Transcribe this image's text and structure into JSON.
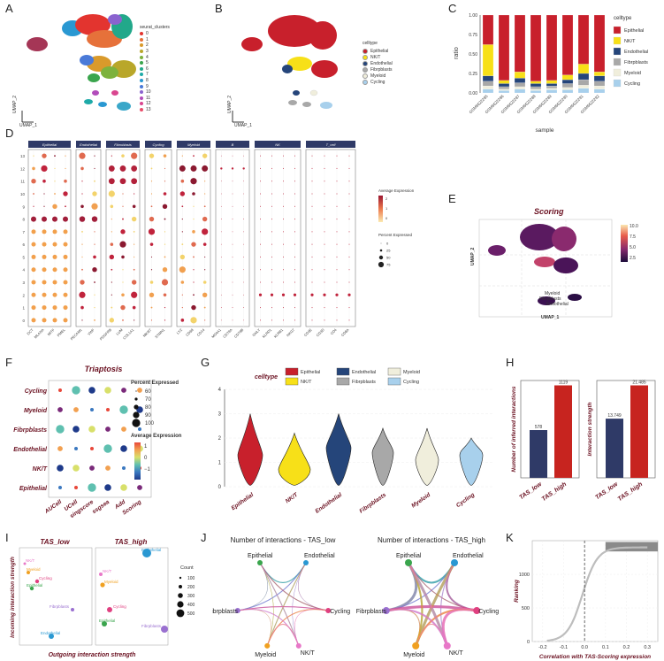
{
  "panels": [
    "A",
    "B",
    "C",
    "D",
    "E",
    "F",
    "G",
    "H",
    "I",
    "J",
    "K"
  ],
  "colors": {
    "epithelial": "#c8202c",
    "nkt": "#f7e018",
    "endothelial": "#25457a",
    "fibroblasts": "#a8a8a8",
    "myeloid": "#f0eedc",
    "cycling": "#a8d0ec",
    "dark_red": "#6a1020",
    "navy": "#2f3a67",
    "red_bar": "#c7241f"
  },
  "A": {
    "legend_title": "seurat_clusters",
    "clusters": [
      {
        "label": "0",
        "color": "#e3342f"
      },
      {
        "label": "1",
        "color": "#e6713a"
      },
      {
        "label": "2",
        "color": "#d99a2b"
      },
      {
        "label": "3",
        "color": "#b9a72a"
      },
      {
        "label": "4",
        "color": "#7db23d"
      },
      {
        "label": "5",
        "color": "#3aa54d"
      },
      {
        "label": "6",
        "color": "#22a88a"
      },
      {
        "label": "7",
        "color": "#1eaaa8"
      },
      {
        "label": "8",
        "color": "#2a98d2"
      },
      {
        "label": "9",
        "color": "#4a7ad8"
      },
      {
        "label": "10",
        "color": "#8a63cf"
      },
      {
        "label": "11",
        "color": "#b24dbb"
      },
      {
        "label": "12",
        "color": "#d9468f"
      },
      {
        "label": "13",
        "color": "#e84d6a"
      }
    ],
    "xlabel": "UMAP_1",
    "ylabel": "UMAP_2"
  },
  "B": {
    "legend_title": "celltype",
    "items": [
      "Epithelial",
      "NK/T",
      "Endothelial",
      "Fibrpblasts",
      "Myeloid",
      "Cycling"
    ],
    "xlabel": "UMAP_1",
    "ylabel": "UMAP_2"
  },
  "C": {
    "legend_title": "celltype",
    "legend": [
      "Epithelial",
      "NK/T",
      "Endothelial",
      "Fibrpblasts",
      "Myeloid",
      "Cycling"
    ],
    "ylabel": "ratio",
    "xlabel": "sample",
    "yticks": [
      "0.00",
      "0.25",
      "0.50",
      "0.75",
      "1.00"
    ],
    "samples": [
      "GSM6622285",
      "GSM6622286",
      "GSM6622287",
      "GSM6622288",
      "GSM6622289",
      "GSM6622290",
      "GSM6622291",
      "GSM6622292"
    ],
    "chart_data": {
      "type": "bar",
      "categories": [
        "GSM6622285",
        "GSM6622286",
        "GSM6622287",
        "GSM6622288",
        "GSM6622289",
        "GSM6622290",
        "GSM6622291",
        "GSM6622292"
      ],
      "series": [
        {
          "name": "Cycling",
          "values": [
            0.05,
            0.03,
            0.05,
            0.03,
            0.04,
            0.04,
            0.06,
            0.05
          ]
        },
        {
          "name": "Myeloid",
          "values": [
            0.04,
            0.02,
            0.03,
            0.02,
            0.02,
            0.03,
            0.04,
            0.04
          ]
        },
        {
          "name": "Fibrpblasts",
          "values": [
            0.06,
            0.03,
            0.05,
            0.03,
            0.03,
            0.05,
            0.07,
            0.06
          ]
        },
        {
          "name": "Endothelial",
          "values": [
            0.07,
            0.04,
            0.06,
            0.04,
            0.03,
            0.05,
            0.08,
            0.07
          ]
        },
        {
          "name": "NK/T",
          "values": [
            0.4,
            0.04,
            0.08,
            0.03,
            0.04,
            0.06,
            0.12,
            0.05
          ]
        },
        {
          "name": "Epithelial",
          "values": [
            0.38,
            0.84,
            0.73,
            0.85,
            0.84,
            0.77,
            0.63,
            0.73
          ]
        }
      ],
      "ylim": [
        0,
        1
      ]
    }
  },
  "D": {
    "groups": [
      "Epithelial",
      "Endothelial",
      "Fibroblasts",
      "Cycling",
      "Myeloid",
      "B",
      "NK",
      "T_cell"
    ],
    "rows": [
      "13",
      "12",
      "11",
      "10",
      "9",
      "8",
      "7",
      "6",
      "5",
      "4",
      "3",
      "2",
      "1",
      "0"
    ],
    "genes": [
      [
        "DCT",
        "MLANA",
        "MITF",
        "PMEL"
      ],
      [
        "PECAM1",
        "VWF"
      ],
      [
        "PDGFRB",
        "LUM",
        "COL1A1"
      ],
      [
        "MKI67",
        "STMN1"
      ],
      [
        "LYZ",
        "CD68",
        "CD14"
      ],
      [
        "MS4A1",
        "CD79A",
        "CD79B"
      ],
      [
        "GNLY",
        "KLRD1",
        "KLRB1",
        "NKG7"
      ],
      [
        "CD3E",
        "CD3D",
        "CD4",
        "CD8A"
      ]
    ],
    "legend_expr_title": "Average Expression",
    "legend_expr_ticks": [
      "2",
      "1",
      "0"
    ],
    "legend_pct_title": "Percent Expressed",
    "legend_pct_ticks": [
      "0",
      "25",
      "50",
      "75"
    ]
  },
  "E": {
    "title": "Scoring",
    "xlabel": "UMAP_1",
    "ylabel": "UMAP_2",
    "colorbar_ticks": [
      "10.0",
      "7.5",
      "5.0",
      "2.5"
    ],
    "labels": [
      "Myeloid",
      "Fibrpblasts",
      "Endothelial"
    ]
  },
  "F": {
    "title": "Triaptosis",
    "rows": [
      "Cycling",
      "Myeloid",
      "Fibrpblasts",
      "Endothelial",
      "NK/T",
      "Epithelial"
    ],
    "cols": [
      "AUCell",
      "UCell",
      "singscore",
      "ssgsea",
      "Add",
      "Scoring"
    ],
    "legend_pct_title": "Percent Expressed",
    "legend_pct_ticks": [
      "60",
      "70",
      "80",
      "90",
      "100"
    ],
    "legend_expr_title": "Average Expression",
    "legend_expr_ticks": [
      "1",
      "0",
      "−1"
    ]
  },
  "G": {
    "legend_title": "celltype",
    "legend": [
      "Epithelial",
      "NK/T",
      "Endothelial",
      "Fibrpblasts",
      "Myeloid",
      "Cycling"
    ],
    "yticks": [
      "0",
      "1",
      "2",
      "3",
      "4"
    ],
    "categories": [
      "Epithelial",
      "NK/T",
      "Endothelial",
      "Fibrpblasts",
      "Myeloid",
      "Cycling"
    ]
  },
  "H": {
    "left": {
      "ylabel": "Number of inferred interactions",
      "categories": [
        "TAS_low",
        "TAS_high"
      ],
      "values": [
        578,
        1119
      ],
      "labels": [
        "578",
        "1119"
      ]
    },
    "right": {
      "ylabel": "Interaction strength",
      "categories": [
        "TAS_low",
        "TAS_high"
      ],
      "values": [
        13.749,
        21.485
      ],
      "labels": [
        "13.749",
        "21.485"
      ]
    }
  },
  "I": {
    "titles": [
      "TAS_low",
      "TAS_high"
    ],
    "xlabel": "Outgoing interaction strength",
    "ylabel": "Incoming interaction strength",
    "count_title": "Count",
    "count_ticks": [
      "100",
      "200",
      "300",
      "400",
      "500"
    ],
    "low_labels": [
      "NK/T",
      "Myeloid",
      "Cycling",
      "Epithelial",
      "Fibrpblasts",
      "Endothelial"
    ],
    "high_labels": [
      "Endothelial",
      "NK/T",
      "Myeloid",
      "Cycling",
      "Epithelial",
      "Fibrpblasts"
    ]
  },
  "J": {
    "titles": [
      "Number of interactions - TAS_low",
      "Number of interactions - TAS_high"
    ],
    "nodes": [
      "Epithelial",
      "Endothelial",
      "Fibrpblasts",
      "Cycling",
      "Myeloid",
      "NK/T"
    ]
  },
  "K": {
    "xlabel": "Correlation with TAS-Scoring expression",
    "ylabel": "Ranking",
    "xticks": [
      "-0.2",
      "-0.1",
      "0.0",
      "0.1",
      "0.2",
      "0.3"
    ],
    "yticks": [
      "0",
      "500",
      "1000"
    ]
  }
}
